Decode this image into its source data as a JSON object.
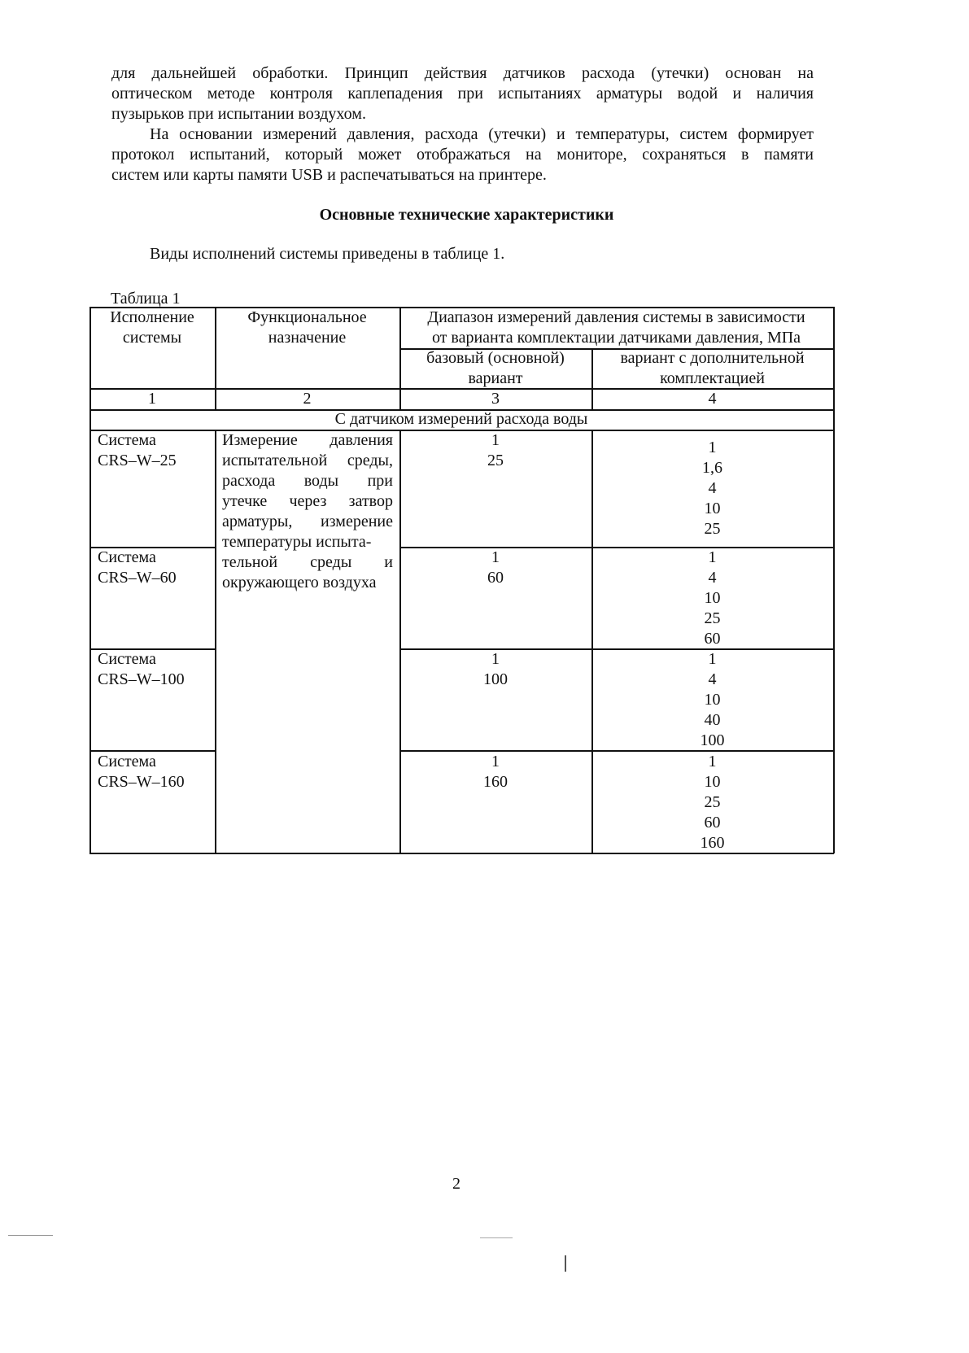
{
  "paragraph1": [
    "для дальнейшей обработки. Принцип действия датчиков расхода (утечки) основан на",
    "оптическом методе контроля каплепадения при испытаниях арматуры водой и наличия",
    "пузырьков при испытании воздухом."
  ],
  "paragraph2": [
    "На основании измерений давления, расхода (утечки) и температуры, систем формирует",
    "протокол испытаний, который может отображаться на мониторе, сохраняться в памяти",
    "систем  или карты памяти USB и распечатываться на принтере."
  ],
  "section_title": "Основные технические характеристики",
  "intro": "Виды исполнений системы  приведены в таблице 1.",
  "table_caption": "Таблица 1",
  "table": {
    "headers": {
      "col1": [
        "Исполнение",
        "системы"
      ],
      "col2": [
        "Функциональное",
        "назначение"
      ],
      "range": [
        "Диапазон измерений давления системы  в зависимости",
        "от варианта комплектации датчиками давления,  МПа"
      ],
      "col3": [
        "базовый (основной)",
        "вариант"
      ],
      "col4": [
        "вариант с дополнительной",
        "комплектацией"
      ]
    },
    "column_numbers": [
      "1",
      "2",
      "3",
      "4"
    ],
    "section_row": "С датчиком измерений расхода воды",
    "function_text": [
      "Измерение давления",
      "испытательной среды,",
      "расхода воды при",
      "утечке через затвор",
      "арматуры, измерение",
      "температуры испыта-",
      "тельной среды и",
      "окружающего воздуха"
    ],
    "rows": [
      {
        "system": [
          "Система",
          "CRS–W–25"
        ],
        "base": [
          "1",
          "25"
        ],
        "extended": [
          "1",
          "1,6",
          "4",
          "10",
          "25"
        ]
      },
      {
        "system": [
          "Система",
          "CRS–W–60"
        ],
        "base": [
          "1",
          "60"
        ],
        "extended": [
          "1",
          "4",
          "10",
          "25",
          "60"
        ]
      },
      {
        "system": [
          "Система",
          "CRS–W–100"
        ],
        "base": [
          "1",
          "100"
        ],
        "extended": [
          "1",
          "4",
          "10",
          "40",
          "100"
        ]
      },
      {
        "system": [
          "Система",
          "CRS–W–160"
        ],
        "base": [
          "1",
          "160"
        ],
        "extended": [
          "1",
          "10",
          "25",
          "60",
          "160"
        ]
      }
    ]
  },
  "page_number": "2"
}
